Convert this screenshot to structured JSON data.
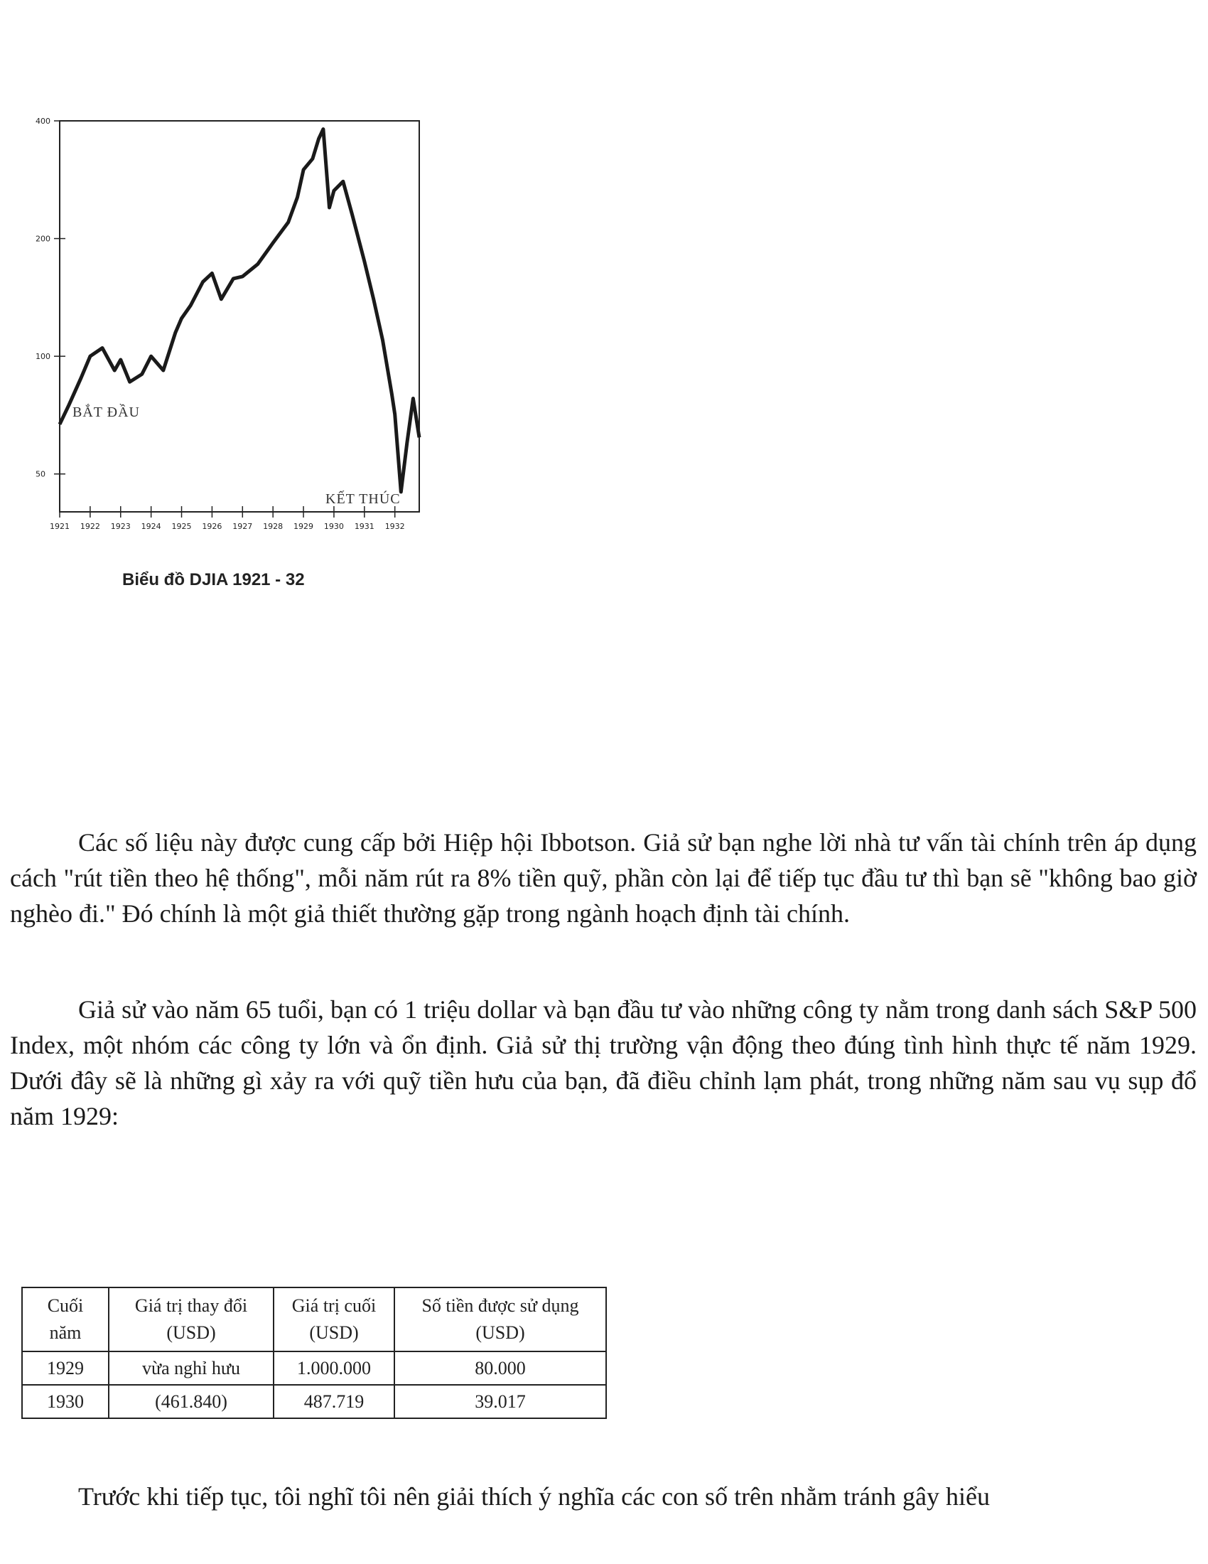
{
  "figure": {
    "caption": "Biểu đồ DJIA 1921 - 32",
    "chart_data": {
      "type": "line",
      "y_ticks": [
        "400",
        "200",
        "100",
        "50"
      ],
      "y_tick_values": [
        400,
        200,
        100,
        50
      ],
      "y_scale": "log",
      "ylim": [
        40,
        400
      ],
      "x_ticks": [
        "1921",
        "1922",
        "1923",
        "1924",
        "1925",
        "1926",
        "1927",
        "1928",
        "1929",
        "1930",
        "1931",
        "1932"
      ],
      "x": [
        1921.0,
        1921.3,
        1921.7,
        1922.0,
        1922.4,
        1922.8,
        1923.0,
        1923.3,
        1923.7,
        1924.0,
        1924.4,
        1924.8,
        1925.0,
        1925.3,
        1925.7,
        1926.0,
        1926.3,
        1926.7,
        1927.0,
        1927.5,
        1928.0,
        1928.5,
        1928.8,
        1929.0,
        1929.3,
        1929.5,
        1929.65,
        1929.85,
        1930.0,
        1930.3,
        1930.6,
        1931.0,
        1931.3,
        1931.6,
        1931.9,
        1932.0,
        1932.2,
        1932.4,
        1932.6,
        1932.8
      ],
      "values": [
        67,
        75,
        88,
        100,
        105,
        92,
        98,
        86,
        90,
        100,
        92,
        115,
        125,
        135,
        155,
        163,
        140,
        158,
        160,
        172,
        195,
        220,
        255,
        300,
        320,
        360,
        381,
        240,
        265,
        280,
        230,
        175,
        140,
        110,
        80,
        71,
        45,
        60,
        78,
        62
      ],
      "annotations": [
        "BẮT ĐẦU",
        "KẾT THÚC"
      ]
    }
  },
  "paragraphs": {
    "p1": "Các số liệu này được cung cấp bởi Hiệp hội Ibbotson. Giả sử bạn nghe lời nhà tư vấn tài chính trên áp dụng cách \"rút tiền theo hệ thống\", mỗi năm rút ra 8% tiền quỹ, phần còn lại để tiếp tục đầu tư thì bạn sẽ \"không bao giờ nghèo đi.\" Đó chính là một giả thiết thường gặp trong ngành hoạch định tài chính.",
    "p2": "Giả sử vào năm 65 tuổi, bạn có 1 triệu dollar và bạn đầu tư vào những công ty nằm trong danh sách S&P 500 Index, một nhóm các công ty lớn và ổn định. Giả sử thị trường vận động theo đúng tình hình thực tế năm 1929. Dưới đây sẽ là những gì xảy ra với quỹ tiền hưu của bạn, đã điều chỉnh lạm phát, trong những năm sau vụ sụp đổ năm 1929:",
    "p3": "Trước khi tiếp tục, tôi nghĩ tôi nên giải thích ý nghĩa các con số trên nhằm tránh gây hiểu"
  },
  "table": {
    "headers": [
      {
        "line1": "Cuối",
        "line2": "năm"
      },
      {
        "line1": "Giá trị thay đổi",
        "line2": "(USD)"
      },
      {
        "line1": "Giá trị cuối",
        "line2": "(USD)"
      },
      {
        "line1": "Số tiền được sử dụng",
        "line2": "(USD)"
      }
    ],
    "rows": [
      [
        "1929",
        "vừa nghỉ hưu",
        "1.000.000",
        "80.000"
      ],
      [
        "1930",
        "(461.840)",
        "487.719",
        "39.017"
      ]
    ]
  }
}
